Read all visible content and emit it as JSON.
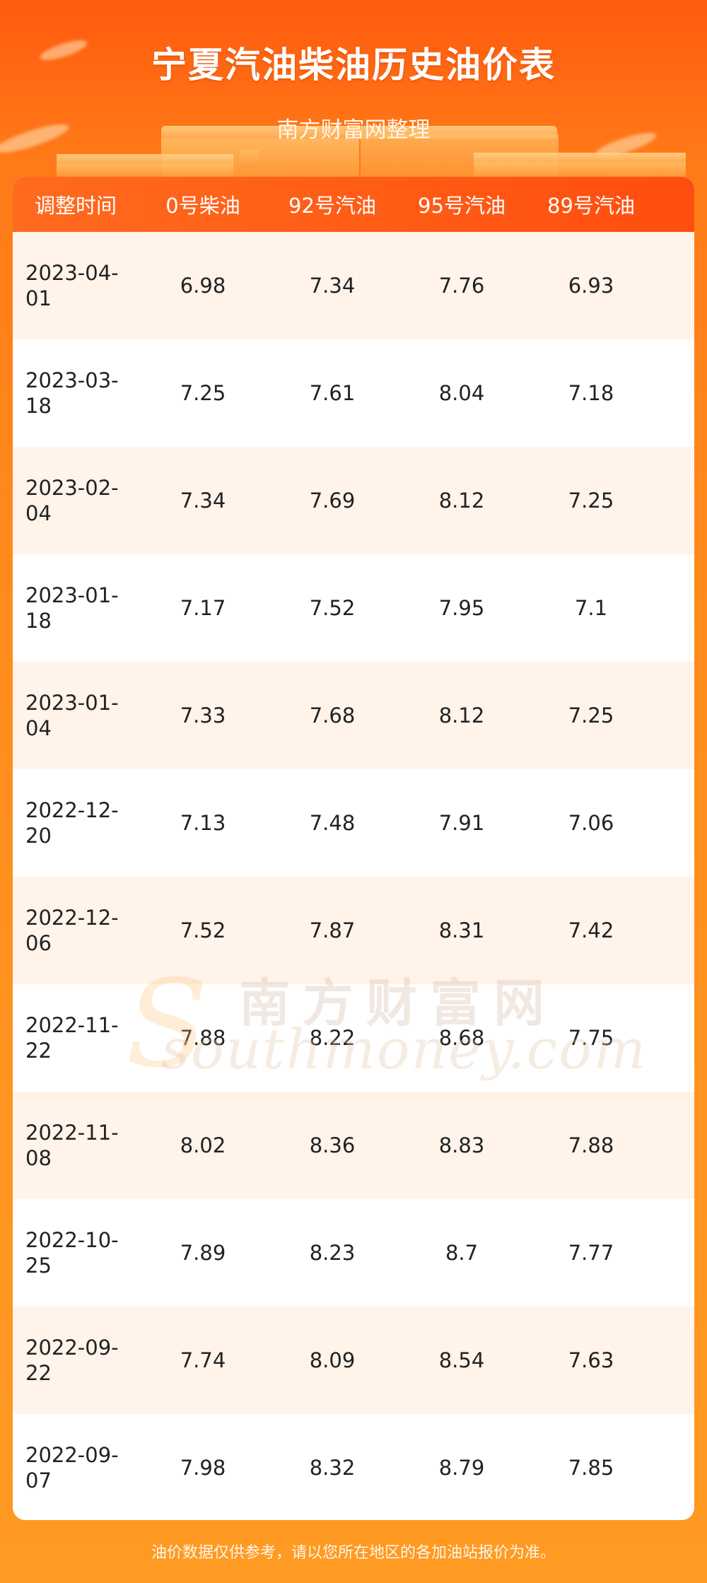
{
  "header": {
    "title": "宁夏汽油柴油历史油价表",
    "subtitle": "南方财富网整理"
  },
  "table": {
    "columns": [
      "调整时间",
      "0号柴油",
      "92号汽油",
      "95号汽油",
      "89号汽油"
    ],
    "rows": [
      [
        "2023-04-01",
        "6.98",
        "7.34",
        "7.76",
        "6.93"
      ],
      [
        "2023-03-18",
        "7.25",
        "7.61",
        "8.04",
        "7.18"
      ],
      [
        "2023-02-04",
        "7.34",
        "7.69",
        "8.12",
        "7.25"
      ],
      [
        "2023-01-18",
        "7.17",
        "7.52",
        "7.95",
        "7.1"
      ],
      [
        "2023-01-04",
        "7.33",
        "7.68",
        "8.12",
        "7.25"
      ],
      [
        "2022-12-20",
        "7.13",
        "7.48",
        "7.91",
        "7.06"
      ],
      [
        "2022-12-06",
        "7.52",
        "7.87",
        "8.31",
        "7.42"
      ],
      [
        "2022-11-22",
        "7.88",
        "8.22",
        "8.68",
        "7.75"
      ],
      [
        "2022-11-08",
        "8.02",
        "8.36",
        "8.83",
        "7.88"
      ],
      [
        "2022-10-25",
        "7.89",
        "8.23",
        "8.7",
        "7.77"
      ],
      [
        "2022-09-22",
        "7.74",
        "8.09",
        "8.54",
        "7.63"
      ],
      [
        "2022-09-07",
        "7.98",
        "8.32",
        "8.79",
        "7.85"
      ]
    ]
  },
  "watermark": {
    "cn": "南方财富网",
    "en": "southmoney.com"
  },
  "footer": {
    "note": "油价数据仅供参考，请以您所在地区的各加油站报价为准。"
  },
  "colors": {
    "header_bar": "#ff5a14",
    "row_alt": "#fff3ea",
    "background": "#ff8a1c"
  }
}
